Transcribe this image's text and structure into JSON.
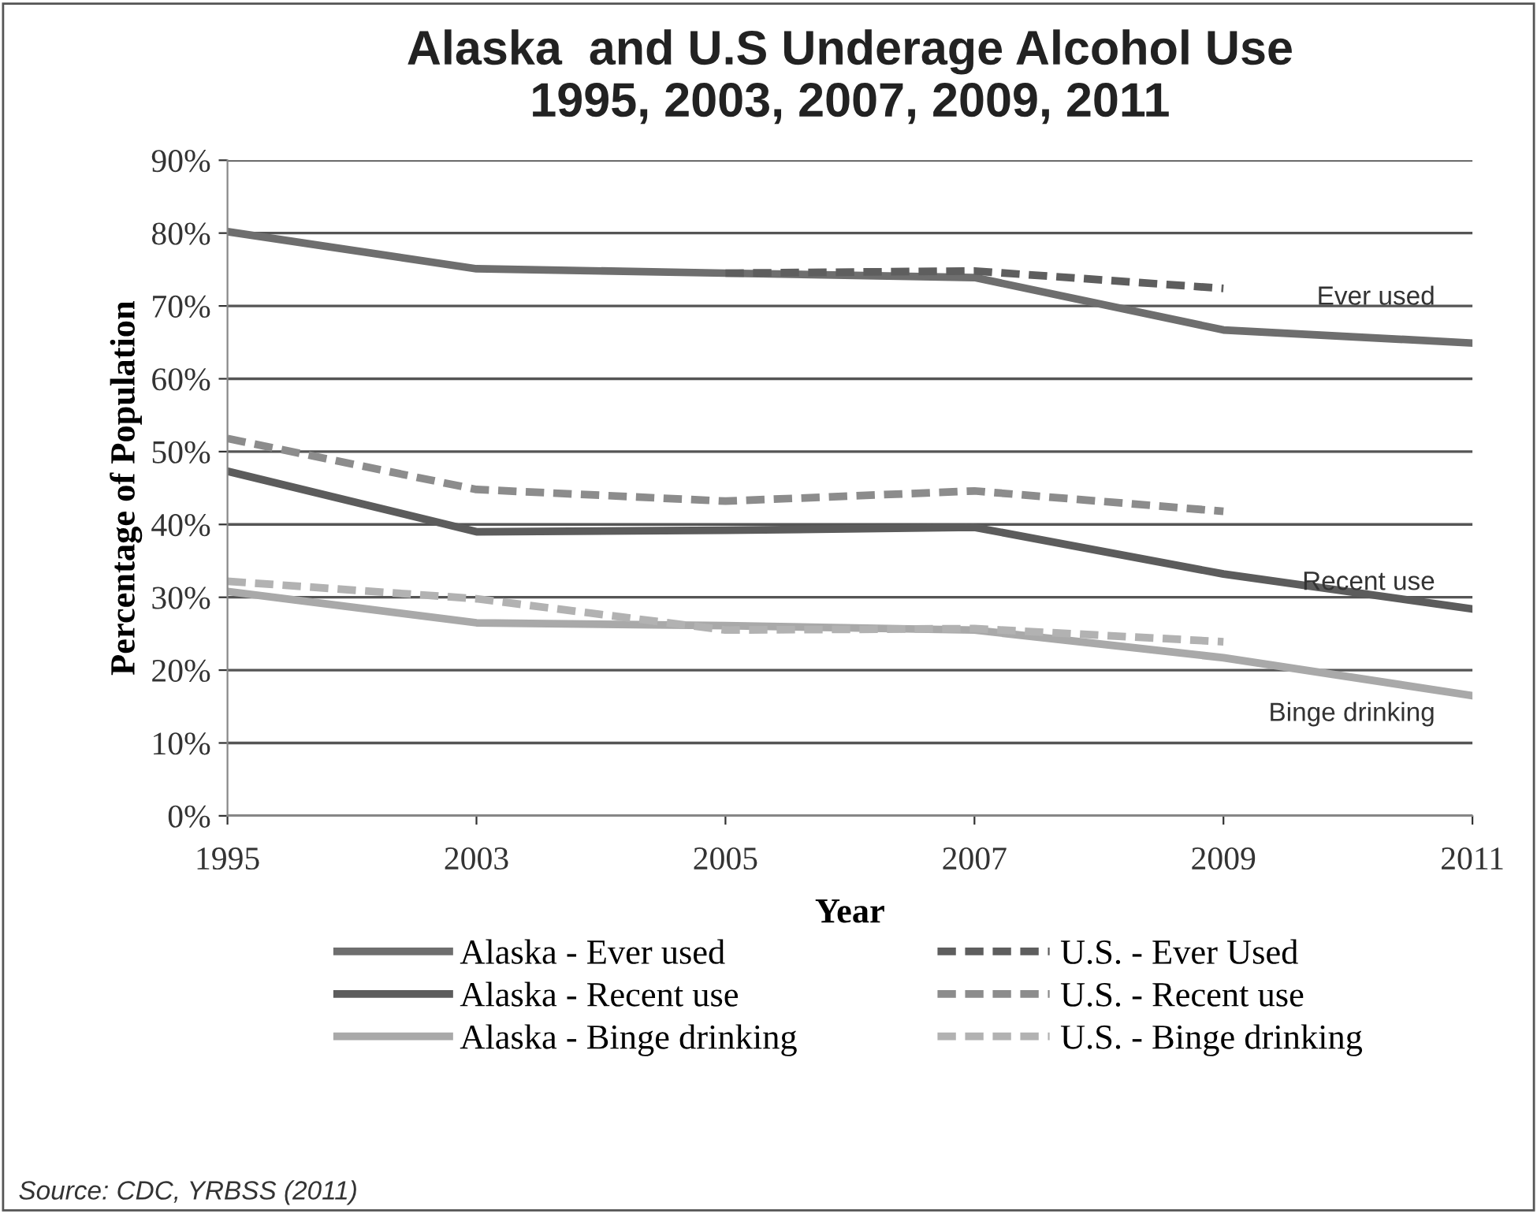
{
  "chart_data": {
    "type": "line",
    "title": "Alaska  and U.S Underage Alcohol Use\n1995, 2003, 2007, 2009, 2011",
    "xlabel": "Year",
    "ylabel": "Percentage of Population",
    "categories": [
      "1995",
      "2003",
      "2005",
      "2007",
      "2009",
      "2011"
    ],
    "series": [
      {
        "name": "Alaska - Ever used",
        "color": "#6e6e6e",
        "line_style": "solid",
        "values": [
          80.2,
          75.1,
          74.5,
          73.9,
          66.7,
          64.9
        ]
      },
      {
        "name": "Alaska - Recent use",
        "color": "#5c5c5c",
        "line_style": "solid",
        "values": [
          47.3,
          39.0,
          39.2,
          39.6,
          33.2,
          28.4
        ]
      },
      {
        "name": "Alaska - Binge drinking",
        "color": "#a9a9a9",
        "line_style": "solid",
        "values": [
          30.8,
          26.5,
          26.1,
          25.5,
          21.7,
          16.5
        ]
      },
      {
        "name": "U.S. - Ever Used",
        "color": "#5e5e5e",
        "line_style": "dashed",
        "values": [
          null,
          null,
          74.5,
          74.8,
          72.4,
          null
        ]
      },
      {
        "name": "U.S. - Recent use",
        "color": "#8c8c8c",
        "line_style": "dashed",
        "values": [
          51.8,
          44.8,
          43.2,
          44.6,
          41.8,
          null
        ]
      },
      {
        "name": "U.S. - Binge drinking",
        "color": "#b2b2b2",
        "line_style": "dashed",
        "values": [
          32.2,
          29.8,
          25.5,
          25.7,
          23.9,
          null
        ]
      }
    ],
    "ylim": [
      0,
      90
    ],
    "yticks": [
      {
        "value": 0,
        "label": "0%"
      },
      {
        "value": 10,
        "label": "10%"
      },
      {
        "value": 20,
        "label": "20%"
      },
      {
        "value": 30,
        "label": "30%"
      },
      {
        "value": 40,
        "label": "40%"
      },
      {
        "value": 50,
        "label": "50%"
      },
      {
        "value": 60,
        "label": "60%"
      },
      {
        "value": 70,
        "label": "70%"
      },
      {
        "value": 80,
        "label": "80%"
      },
      {
        "value": 90,
        "label": "90%"
      }
    ],
    "grid": "y",
    "legend": "bottom",
    "marker": "none",
    "annotations": [
      "Ever used",
      "Recent use",
      "Binge drinking",
      "Source: CDC, YRBSS (2011)"
    ]
  }
}
